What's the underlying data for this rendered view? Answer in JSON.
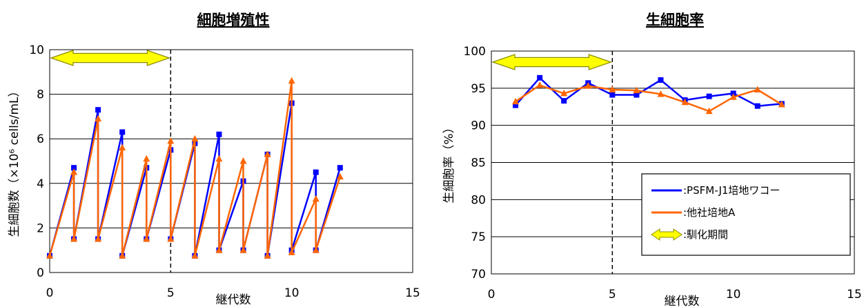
{
  "chart_data": [
    {
      "type": "line",
      "title": "細胞増殖性",
      "xlabel": "継代数",
      "ylabel": "生細胞数（×10⁶ cells/mL）",
      "xlim": [
        0,
        15
      ],
      "ylim": [
        0,
        10
      ],
      "xticks": [
        "0",
        "5",
        "10",
        "15"
      ],
      "yticks": [
        "0",
        "2",
        "4",
        "6",
        "8",
        "10"
      ],
      "grid": true,
      "adaptation_range": [
        0,
        5
      ],
      "series": [
        {
          "color": "#0000ff",
          "marker": "square",
          "points": [
            [
              0,
              0.75
            ],
            [
              1,
              4.7
            ],
            [
              1,
              1.5
            ],
            [
              2,
              7.3
            ],
            [
              2,
              1.5
            ],
            [
              3,
              6.3
            ],
            [
              3,
              0.75
            ],
            [
              4,
              4.7
            ],
            [
              4,
              1.5
            ],
            [
              5,
              5.5
            ],
            [
              5,
              1.5
            ],
            [
              6,
              5.8
            ],
            [
              6,
              0.75
            ],
            [
              7,
              6.2
            ],
            [
              7,
              1.0
            ],
            [
              8,
              4.1
            ],
            [
              8,
              1.0
            ],
            [
              9,
              5.3
            ],
            [
              9,
              0.75
            ],
            [
              10,
              7.6
            ],
            [
              10,
              1.0
            ],
            [
              11,
              4.5
            ],
            [
              11,
              1.0
            ],
            [
              12,
              4.7
            ]
          ]
        },
        {
          "color": "#ff6600",
          "marker": "triangle",
          "points": [
            [
              0,
              0.75
            ],
            [
              1,
              4.5
            ],
            [
              1,
              1.5
            ],
            [
              2,
              6.9
            ],
            [
              2,
              1.5
            ],
            [
              3,
              5.6
            ],
            [
              3,
              0.75
            ],
            [
              4,
              5.1
            ],
            [
              4,
              1.5
            ],
            [
              5,
              5.9
            ],
            [
              5,
              1.5
            ],
            [
              6,
              6.0
            ],
            [
              6,
              0.75
            ],
            [
              7,
              5.1
            ],
            [
              7,
              1.0
            ],
            [
              8,
              5.0
            ],
            [
              8,
              1.0
            ],
            [
              9,
              5.3
            ],
            [
              9,
              0.75
            ],
            [
              10,
              8.6
            ],
            [
              10,
              0.9
            ],
            [
              11,
              3.3
            ],
            [
              11,
              1.0
            ],
            [
              12,
              4.3
            ]
          ]
        }
      ]
    },
    {
      "type": "line",
      "title": "生細胞率",
      "xlabel": "継代数",
      "ylabel": "生細胞率（%）",
      "xlim": [
        0,
        15
      ],
      "ylim": [
        70,
        100
      ],
      "xticks": [
        "0",
        "5",
        "10",
        "15"
      ],
      "yticks": [
        "70",
        "75",
        "80",
        "85",
        "90",
        "95",
        "100"
      ],
      "grid": true,
      "adaptation_range": [
        0,
        5
      ],
      "legend": {
        "placement": "lower-right",
        "entries": [
          {
            "label": ":PSFM-J1培地ワコー",
            "color": "#0000ff"
          },
          {
            "label": ":他社培地A",
            "color": "#ff6600"
          },
          {
            "label": ":馴化期間",
            "color": "#ffff00"
          }
        ]
      },
      "series": [
        {
          "color": "#0000ff",
          "marker": "square",
          "points": [
            [
              1,
              92.7
            ],
            [
              2,
              96.4
            ],
            [
              3,
              93.3
            ],
            [
              4,
              95.7
            ],
            [
              5,
              94.1
            ],
            [
              6,
              94.1
            ],
            [
              7,
              96.1
            ],
            [
              8,
              93.4
            ],
            [
              9,
              93.9
            ],
            [
              10,
              94.3
            ],
            [
              11,
              92.6
            ],
            [
              12,
              92.9
            ]
          ]
        },
        {
          "color": "#ff6600",
          "marker": "triangle",
          "points": [
            [
              1,
              93.2
            ],
            [
              2,
              95.4
            ],
            [
              3,
              94.3
            ],
            [
              4,
              95.3
            ],
            [
              5,
              94.8
            ],
            [
              6,
              94.7
            ],
            [
              7,
              94.2
            ],
            [
              8,
              93.1
            ],
            [
              9,
              91.9
            ],
            [
              10,
              93.8
            ],
            [
              11,
              94.8
            ],
            [
              12,
              92.8
            ]
          ]
        }
      ]
    }
  ]
}
